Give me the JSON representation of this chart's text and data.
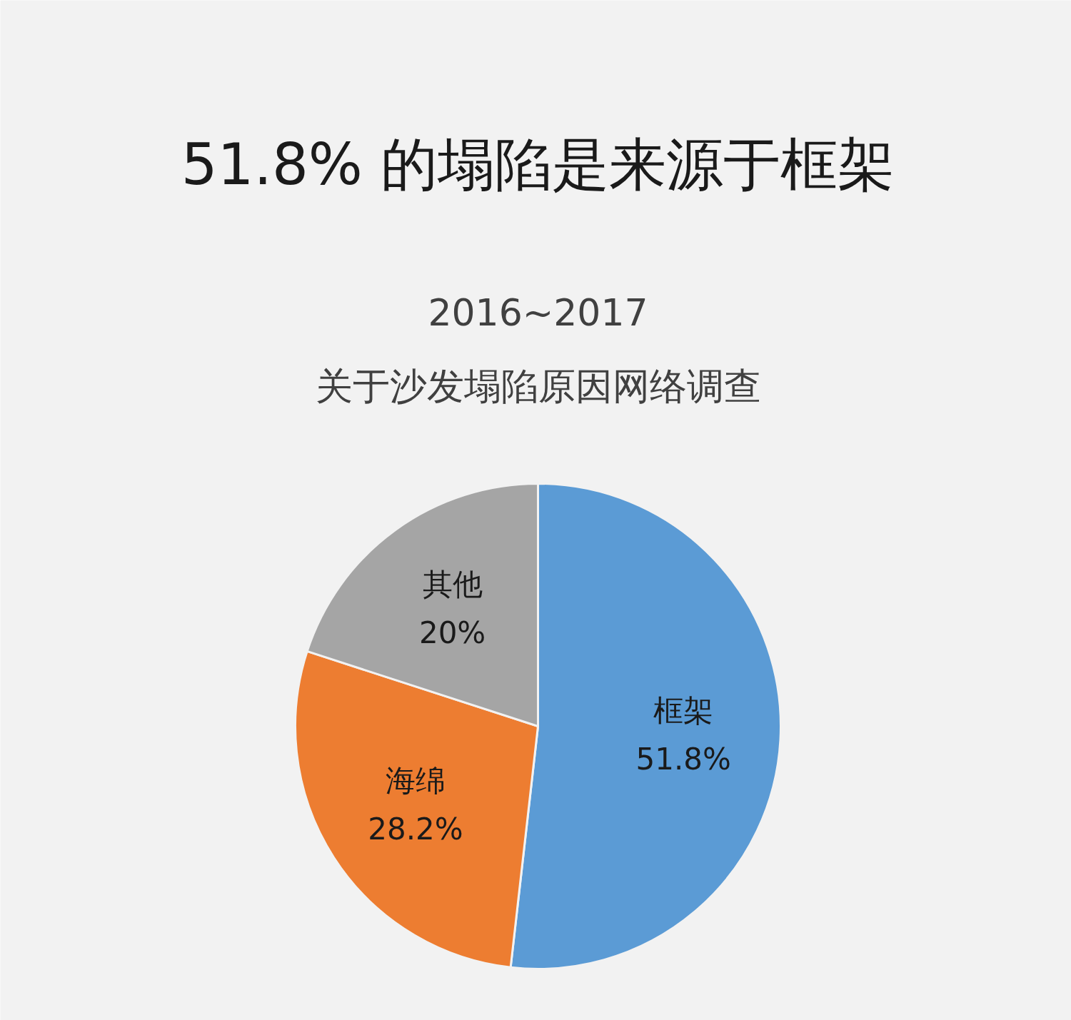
{
  "chart_data": {
    "type": "pie",
    "title": "51.8% 的塌陷是来源于框架",
    "subtitle": "2016~2017\n关于沙发塌陷原因网络调查",
    "categories": [
      "框架",
      "海绵",
      "其他"
    ],
    "values": [
      51.8,
      28.2,
      20
    ],
    "colors": [
      "#5b9bd5",
      "#ed7d31",
      "#a5a5a5"
    ],
    "value_labels": [
      "51.8%",
      "28.2%",
      "20%"
    ],
    "legend": false
  }
}
